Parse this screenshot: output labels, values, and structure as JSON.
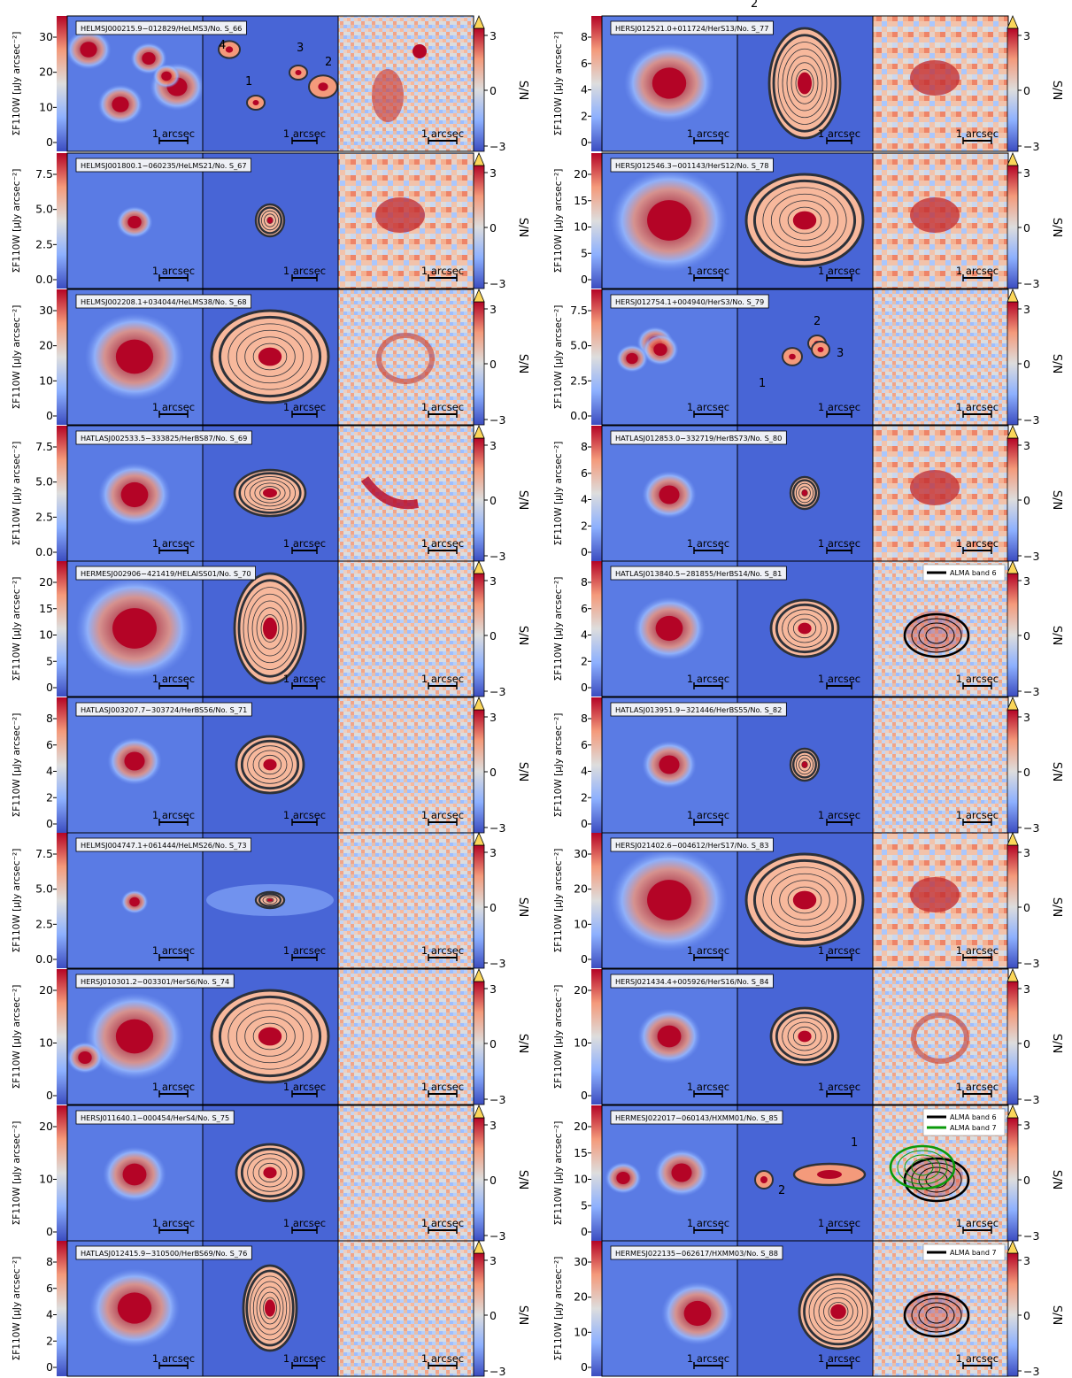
{
  "figure": {
    "colorbar_label": "S/N",
    "colorbar_ticks": [
      "3",
      "0",
      "−3"
    ],
    "scalebar_label": "1 arcsec",
    "ylabel": "ΣF110W [μJy arcsec⁻²]",
    "overflow_color": "#fbd65a",
    "map_colormap": "coolwarm"
  },
  "columns": [
    {
      "rows": [
        {
          "title": "HELMSJ000215.9−012829/HeLMS3/No. S_66",
          "yticks": [
            "30",
            "20",
            "10",
            "0"
          ],
          "image_labels": [
            {
              "text": "4",
              "x": 18,
              "y": 37
            },
            {
              "text": "1",
              "x": 48,
              "y": 78
            },
            {
              "text": "3",
              "x": 106,
              "y": 40
            },
            {
              "text": "2",
              "x": 138,
              "y": 56
            }
          ],
          "sources": [
            {
              "x": 24,
              "y": 38,
              "s": 1
            },
            {
              "x": 60,
              "y": 100,
              "s": 1
            },
            {
              "x": 92,
              "y": 48,
              "s": 0.8
            },
            {
              "x": 124,
              "y": 80,
              "s": 1.2
            },
            {
              "x": 112,
              "y": 68,
              "s": 0.6
            }
          ],
          "model": "multi4",
          "res": "s66",
          "text_top": "",
          "alma": []
        },
        {
          "title": "HELMSJ001800.1−060235/HeLMS21/No. S_67",
          "yticks": [
            "7.5",
            "5.0",
            "2.5",
            "0.0"
          ],
          "image_labels": [],
          "sources": [
            {
              "x": 76,
              "y": 78,
              "s": 0.8
            }
          ],
          "model": "small",
          "res": "blob",
          "alma": []
        },
        {
          "title": "HELMSJ002208.1+034044/HeLMS38/No. S_68",
          "yticks": [
            "30",
            "20",
            "10",
            "0"
          ],
          "image_labels": [],
          "sources": [
            {
              "x": 76,
              "y": 76,
              "s": 2.2
            }
          ],
          "model": "big",
          "res": "ring",
          "alma": []
        },
        {
          "title": "HATLASJ002533.5−333825/HerBS87/No. S_69",
          "yticks": [
            "7.5",
            "5.0",
            "2.5",
            "0.0"
          ],
          "image_labels": [],
          "sources": [
            {
              "x": 76,
              "y": 78,
              "s": 1.6
            }
          ],
          "model": "ellipse",
          "res": "arc",
          "alma": []
        },
        {
          "title": "HERMESJ002906−421419/HELAISS01/No. S_70",
          "yticks": [
            "20",
            "15",
            "10",
            "5",
            "0"
          ],
          "image_labels": [],
          "sources": [
            {
              "x": 76,
              "y": 76,
              "s": 2.6
            }
          ],
          "model": "tallbig",
          "res": "noise",
          "alma": []
        },
        {
          "title": "HATLASJ003207.7−303724/HerBS56/No. S_71",
          "yticks": [
            "8",
            "6",
            "4",
            "2",
            "0"
          ],
          "image_labels": [],
          "sources": [
            {
              "x": 76,
              "y": 72,
              "s": 1.2
            }
          ],
          "model": "mid",
          "res": "noise",
          "alma": []
        },
        {
          "title": "HELMSJ004747.1+061444/HeLMS26/No. S_73",
          "yticks": [
            "7.5",
            "5.0",
            "2.5",
            "0.0"
          ],
          "image_labels": [],
          "sources": [
            {
              "x": 76,
              "y": 78,
              "s": 0.6
            }
          ],
          "model": "disk",
          "res": "noise",
          "alma": []
        },
        {
          "title": "HERSJ010301.2−003301/HerS6/No. S_74",
          "yticks": [
            "20",
            "10",
            "0"
          ],
          "image_labels": [],
          "sources": [
            {
              "x": 76,
              "y": 76,
              "s": 2.2
            },
            {
              "x": 20,
              "y": 100,
              "s": 0.8
            }
          ],
          "model": "big",
          "res": "noise",
          "alma": []
        },
        {
          "title": "HERSJ011640.1−000454/HerS4/No. S_75",
          "yticks": [
            "20",
            "10",
            "0"
          ],
          "image_labels": [],
          "sources": [
            {
              "x": 76,
              "y": 78,
              "s": 1.4
            }
          ],
          "model": "mid",
          "res": "noise",
          "alma": []
        },
        {
          "title": "HATLASJ012415.9−310500/HerBS69/No. S_76",
          "yticks": [
            "8",
            "6",
            "4",
            "2",
            "0"
          ],
          "image_labels": [],
          "sources": [
            {
              "x": 76,
              "y": 76,
              "s": 2.0
            }
          ],
          "model": "tall",
          "res": "noise",
          "alma": []
        }
      ]
    },
    {
      "rows": [
        {
          "title": "HERSJ012521.0+011724/HerS13/No. S_77",
          "yticks": [
            "8",
            "6",
            "4",
            "2",
            "0"
          ],
          "image_labels": [
            {
              "text": "2",
              "x": 15,
              "y": -10
            }
          ],
          "sources": [
            {
              "x": 76,
              "y": 76,
              "s": 2.0
            }
          ],
          "model": "tallbig",
          "res": "blob",
          "alma": []
        },
        {
          "title": "HERSJ012546.3−001143/HerS12/No. S_78",
          "yticks": [
            "20",
            "15",
            "10",
            "5",
            "0"
          ],
          "image_labels": [],
          "sources": [
            {
              "x": 76,
              "y": 76,
              "s": 2.6
            }
          ],
          "model": "big",
          "res": "blob",
          "alma": []
        },
        {
          "title": "HERSJ012754.1+004940/HerS3/No. S_79",
          "yticks": [
            "7.5",
            "5.0",
            "2.5",
            "0.0"
          ],
          "image_labels": [
            {
              "text": "2",
              "x": 86,
              "y": 40
            },
            {
              "text": "3",
              "x": 112,
              "y": 76
            },
            {
              "text": "1",
              "x": 24,
              "y": 110
            }
          ],
          "sources": [
            {
              "x": 60,
              "y": 60,
              "s": 0.8
            },
            {
              "x": 66,
              "y": 68,
              "s": 0.8
            },
            {
              "x": 34,
              "y": 78,
              "s": 0.7
            }
          ],
          "model": "multi3",
          "res": "noise",
          "alma": []
        },
        {
          "title": "HATLASJ012853.0−332719/HerBS73/No. S_80",
          "yticks": [
            "8",
            "6",
            "4",
            "2",
            "0"
          ],
          "image_labels": [],
          "sources": [
            {
              "x": 76,
              "y": 78,
              "s": 1.2
            }
          ],
          "model": "small",
          "res": "blob",
          "alma": []
        },
        {
          "title": "HATLASJ013840.5−281855/HerBS14/No. S_81",
          "yticks": [
            "8",
            "6",
            "4",
            "2",
            "0"
          ],
          "image_labels": [],
          "sources": [
            {
              "x": 76,
              "y": 76,
              "s": 1.6
            }
          ],
          "model": "mid",
          "res": "alma",
          "alma": [
            {
              "label": "ALMA band 6",
              "color": "#000000"
            }
          ]
        },
        {
          "title": "HATLASJ013951.9−321446/HerBS55/No. S_82",
          "yticks": [
            "8",
            "6",
            "4",
            "2",
            "0"
          ],
          "image_labels": [],
          "sources": [
            {
              "x": 76,
              "y": 76,
              "s": 1.2
            }
          ],
          "model": "small",
          "res": "noise",
          "alma": []
        },
        {
          "title": "HERSJ021402.6−004612/HerS17/No. S_83",
          "yticks": [
            "30",
            "20",
            "10",
            "0"
          ],
          "image_labels": [],
          "sources": [
            {
              "x": 76,
              "y": 76,
              "s": 2.6
            }
          ],
          "model": "big",
          "res": "blob",
          "alma": []
        },
        {
          "title": "HERSJ021434.4+005926/HerS16/No. S_84",
          "yticks": [
            "20",
            "10",
            "0"
          ],
          "image_labels": [],
          "sources": [
            {
              "x": 76,
              "y": 76,
              "s": 1.4
            }
          ],
          "model": "mid",
          "res": "ring",
          "alma": []
        },
        {
          "title": "HERMESJ022017−060143/HXMM01/No. S_85",
          "yticks": [
            "20",
            "15",
            "10",
            "5",
            "0"
          ],
          "image_labels": [
            {
              "text": "1",
              "x": 128,
              "y": 46
            },
            {
              "text": "2",
              "x": 46,
              "y": 100
            }
          ],
          "sources": [
            {
              "x": 90,
              "y": 76,
              "s": 1.2
            },
            {
              "x": 24,
              "y": 82,
              "s": 0.8
            }
          ],
          "model": "hxmm01",
          "res": "alma",
          "alma": [
            {
              "label": "ALMA band 6",
              "color": "#000000"
            },
            {
              "label": "ALMA band 7",
              "color": "#0a9a0a"
            }
          ]
        },
        {
          "title": "HERMESJ022135−062617/HXMM03/No. S_88",
          "yticks": [
            "30",
            "20",
            "10",
            "0"
          ],
          "image_labels": [],
          "sources": [
            {
              "x": 108,
              "y": 82,
              "s": 1.6
            }
          ],
          "model": "offset",
          "res": "alma",
          "alma": [
            {
              "label": "ALMA band 7",
              "color": "#000000"
            }
          ]
        }
      ]
    }
  ]
}
